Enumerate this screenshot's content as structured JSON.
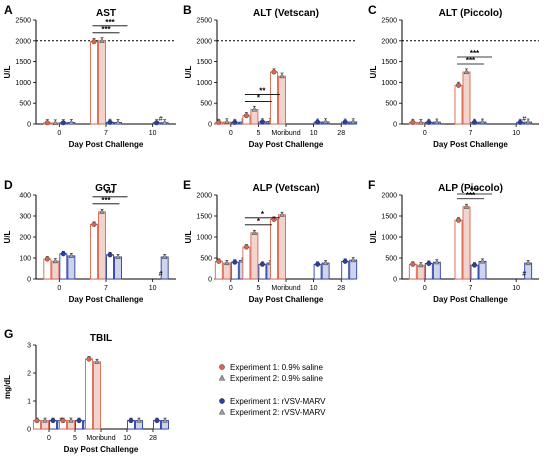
{
  "colors": {
    "saline": "#d9664e",
    "marv": "#2b3ea3",
    "saline_fill": "#f3d4cc",
    "marv_fill": "#cfd4ee",
    "exp2_marker": "#9aa0a6",
    "error": "#333333"
  },
  "legend": [
    {
      "label": "Experiment 1: 0.9% saline",
      "marker": "circle",
      "color": "#d9664e"
    },
    {
      "label": "Experiment 2: 0.9% saline",
      "marker": "triangle",
      "color": "#d9664e"
    },
    {
      "label": "Experiment 1: rVSV-MARV",
      "marker": "circle",
      "color": "#2b3ea3"
    },
    {
      "label": "Experiment 2: rVSV-MARV",
      "marker": "triangle",
      "color": "#2b3ea3"
    }
  ],
  "chart_data": [
    {
      "panel": "A",
      "type": "bar",
      "title": "AST",
      "ylabel": "U/L",
      "xlabel": "Day Post Challenge",
      "ylim": [
        0,
        2500
      ],
      "yticks": [
        0,
        500,
        1000,
        1500,
        2000,
        2500
      ],
      "ref_line": 2000,
      "categories": [
        "0",
        "7",
        "10"
      ],
      "bars": [
        {
          "category": "0",
          "group": "saline",
          "exp": 1,
          "value": 30
        },
        {
          "category": "0",
          "group": "saline",
          "exp": 2,
          "value": 25
        },
        {
          "category": "0",
          "group": "marv",
          "exp": 1,
          "value": 30
        },
        {
          "category": "0",
          "group": "marv",
          "exp": 2,
          "value": 35
        },
        {
          "category": "7",
          "group": "saline",
          "exp": 1,
          "value": 1980
        },
        {
          "category": "7",
          "group": "saline",
          "exp": 2,
          "value": 2000
        },
        {
          "category": "7",
          "group": "marv",
          "exp": 1,
          "value": 40
        },
        {
          "category": "7",
          "group": "marv",
          "exp": 2,
          "value": 35
        },
        {
          "category": "10",
          "group": "marv",
          "exp": 1,
          "value": 30
        },
        {
          "category": "10",
          "group": "marv",
          "exp": 2,
          "value": 30
        }
      ],
      "significance": [
        {
          "label": "***",
          "from": "7",
          "to": "7",
          "level": 1
        },
        {
          "label": "***",
          "from": "7",
          "to": "7",
          "level": 2
        }
      ],
      "marks": [
        {
          "label": "#",
          "category": "10"
        }
      ]
    },
    {
      "panel": "B",
      "type": "bar",
      "title": "ALT (Vetscan)",
      "ylabel": "U/L",
      "xlabel": "Day Post Challenge",
      "ylim": [
        0,
        2500
      ],
      "yticks": [
        0,
        500,
        1000,
        1500,
        2000,
        2500
      ],
      "ref_line": 2000,
      "categories": [
        "0",
        "5",
        "Moribund",
        "10",
        "28"
      ],
      "bars": [
        {
          "category": "0",
          "group": "saline",
          "exp": 1,
          "value": 40
        },
        {
          "category": "0",
          "group": "saline",
          "exp": 2,
          "value": 50
        },
        {
          "category": "0",
          "group": "marv",
          "exp": 1,
          "value": 40
        },
        {
          "category": "0",
          "group": "marv",
          "exp": 2,
          "value": 45
        },
        {
          "category": "5",
          "group": "saline",
          "exp": 1,
          "value": 200
        },
        {
          "category": "5",
          "group": "saline",
          "exp": 2,
          "value": 350
        },
        {
          "category": "5",
          "group": "marv",
          "exp": 1,
          "value": 50
        },
        {
          "category": "5",
          "group": "marv",
          "exp": 2,
          "value": 60
        },
        {
          "category": "Moribund",
          "group": "saline",
          "exp": 1,
          "value": 1250
        },
        {
          "category": "Moribund",
          "group": "saline",
          "exp": 2,
          "value": 1150
        },
        {
          "category": "10",
          "group": "marv",
          "exp": 1,
          "value": 45
        },
        {
          "category": "10",
          "group": "marv",
          "exp": 2,
          "value": 50
        },
        {
          "category": "28",
          "group": "marv",
          "exp": 1,
          "value": 45
        },
        {
          "category": "28",
          "group": "marv",
          "exp": 2,
          "value": 50
        }
      ],
      "significance": [
        {
          "label": "*",
          "from": "5",
          "to": "5",
          "level": 1
        },
        {
          "label": "**",
          "from": "5",
          "to": "5",
          "level": 2
        }
      ],
      "marks": []
    },
    {
      "panel": "C",
      "type": "bar",
      "title": "ALT (Piccolo)",
      "ylabel": "U/L",
      "xlabel": "Day Post Challenge",
      "ylim": [
        0,
        2500
      ],
      "yticks": [
        0,
        500,
        1000,
        1500,
        2000,
        2500
      ],
      "ref_line": 2000,
      "categories": [
        "0",
        "7",
        "10"
      ],
      "bars": [
        {
          "category": "0",
          "group": "saline",
          "exp": 1,
          "value": 40
        },
        {
          "category": "0",
          "group": "saline",
          "exp": 2,
          "value": 35
        },
        {
          "category": "0",
          "group": "marv",
          "exp": 1,
          "value": 40
        },
        {
          "category": "0",
          "group": "marv",
          "exp": 2,
          "value": 45
        },
        {
          "category": "7",
          "group": "saline",
          "exp": 1,
          "value": 930
        },
        {
          "category": "7",
          "group": "saline",
          "exp": 2,
          "value": 1250
        },
        {
          "category": "7",
          "group": "marv",
          "exp": 1,
          "value": 40
        },
        {
          "category": "7",
          "group": "marv",
          "exp": 2,
          "value": 45
        },
        {
          "category": "10",
          "group": "marv",
          "exp": 1,
          "value": 40
        },
        {
          "category": "10",
          "group": "marv",
          "exp": 2,
          "value": 45
        }
      ],
      "significance": [
        {
          "label": "***",
          "from": "7",
          "to": "7",
          "level": 1
        },
        {
          "label": "***",
          "from": "7",
          "to": "7",
          "level": 2
        }
      ],
      "marks": [
        {
          "label": "#",
          "category": "10"
        }
      ]
    },
    {
      "panel": "D",
      "type": "bar",
      "title": "GGT",
      "ylabel": "U/L",
      "xlabel": "Day Post Challenge",
      "ylim": [
        0,
        400
      ],
      "yticks": [
        0,
        100,
        200,
        300,
        400
      ],
      "categories": [
        "0",
        "7",
        "10"
      ],
      "bars": [
        {
          "category": "0",
          "group": "saline",
          "exp": 1,
          "value": 95
        },
        {
          "category": "0",
          "group": "saline",
          "exp": 2,
          "value": 85
        },
        {
          "category": "0",
          "group": "marv",
          "exp": 1,
          "value": 120
        },
        {
          "category": "0",
          "group": "marv",
          "exp": 2,
          "value": 110
        },
        {
          "category": "7",
          "group": "saline",
          "exp": 1,
          "value": 260
        },
        {
          "category": "7",
          "group": "saline",
          "exp": 2,
          "value": 320
        },
        {
          "category": "7",
          "group": "marv",
          "exp": 1,
          "value": 115
        },
        {
          "category": "7",
          "group": "marv",
          "exp": 2,
          "value": 105
        },
        {
          "category": "10",
          "group": "marv",
          "exp": 2,
          "value": 105
        }
      ],
      "significance": [
        {
          "label": "***",
          "from": "7",
          "to": "7",
          "level": 1
        },
        {
          "label": "***",
          "from": "7",
          "to": "7",
          "level": 2
        }
      ],
      "marks": [
        {
          "label": "#",
          "category": "10"
        }
      ]
    },
    {
      "panel": "E",
      "type": "bar",
      "title": "ALP (Vetscan)",
      "ylabel": "U/L",
      "xlabel": "Day Post Challenge",
      "ylim": [
        0,
        2000
      ],
      "yticks": [
        0,
        500,
        1000,
        1500,
        2000
      ],
      "categories": [
        "0",
        "5",
        "Moribund",
        "10",
        "28"
      ],
      "bars": [
        {
          "category": "0",
          "group": "saline",
          "exp": 1,
          "value": 420
        },
        {
          "category": "0",
          "group": "saline",
          "exp": 2,
          "value": 380
        },
        {
          "category": "0",
          "group": "marv",
          "exp": 1,
          "value": 400
        },
        {
          "category": "0",
          "group": "marv",
          "exp": 2,
          "value": 440
        },
        {
          "category": "5",
          "group": "saline",
          "exp": 1,
          "value": 760
        },
        {
          "category": "5",
          "group": "saline",
          "exp": 2,
          "value": 1100
        },
        {
          "category": "5",
          "group": "marv",
          "exp": 1,
          "value": 350
        },
        {
          "category": "5",
          "group": "marv",
          "exp": 2,
          "value": 380
        },
        {
          "category": "Moribund",
          "group": "saline",
          "exp": 1,
          "value": 1420
        },
        {
          "category": "Moribund",
          "group": "saline",
          "exp": 2,
          "value": 1530
        },
        {
          "category": "10",
          "group": "marv",
          "exp": 1,
          "value": 350
        },
        {
          "category": "10",
          "group": "marv",
          "exp": 2,
          "value": 380
        },
        {
          "category": "28",
          "group": "marv",
          "exp": 1,
          "value": 420
        },
        {
          "category": "28",
          "group": "marv",
          "exp": 2,
          "value": 450
        }
      ],
      "significance": [
        {
          "label": "*",
          "from": "5",
          "to": "5",
          "level": 1
        },
        {
          "label": "*",
          "from": "5",
          "to": "5",
          "level": 2
        }
      ],
      "marks": []
    },
    {
      "panel": "F",
      "type": "bar",
      "title": "ALP (Piccolo)",
      "ylabel": "U/L",
      "xlabel": "Day Post Challenge",
      "ylim": [
        0,
        2000
      ],
      "yticks": [
        0,
        500,
        1000,
        1500,
        2000
      ],
      "categories": [
        "0",
        "7",
        "10"
      ],
      "bars": [
        {
          "category": "0",
          "group": "saline",
          "exp": 1,
          "value": 350
        },
        {
          "category": "0",
          "group": "saline",
          "exp": 2,
          "value": 330
        },
        {
          "category": "0",
          "group": "marv",
          "exp": 1,
          "value": 370
        },
        {
          "category": "0",
          "group": "marv",
          "exp": 2,
          "value": 400
        },
        {
          "category": "7",
          "group": "saline",
          "exp": 1,
          "value": 1400
        },
        {
          "category": "7",
          "group": "saline",
          "exp": 2,
          "value": 1720
        },
        {
          "category": "7",
          "group": "marv",
          "exp": 1,
          "value": 330
        },
        {
          "category": "7",
          "group": "marv",
          "exp": 2,
          "value": 420
        },
        {
          "category": "10",
          "group": "marv",
          "exp": 2,
          "value": 380
        }
      ],
      "significance": [
        {
          "label": "***",
          "from": "7",
          "to": "7",
          "level": 1
        },
        {
          "label": "***",
          "from": "7",
          "to": "7",
          "level": 2
        }
      ],
      "marks": [
        {
          "label": "#",
          "category": "10"
        }
      ]
    },
    {
      "panel": "G",
      "type": "bar",
      "title": "TBIL",
      "ylabel": "mg/dL",
      "xlabel": "Day Post Challenge",
      "ylim": [
        0,
        3
      ],
      "yticks": [
        0,
        1,
        2,
        3
      ],
      "categories": [
        "0",
        "5",
        "Moribund",
        "10",
        "28"
      ],
      "bars": [
        {
          "category": "0",
          "group": "saline",
          "exp": 1,
          "value": 0.3
        },
        {
          "category": "0",
          "group": "saline",
          "exp": 2,
          "value": 0.3
        },
        {
          "category": "0",
          "group": "marv",
          "exp": 1,
          "value": 0.3
        },
        {
          "category": "0",
          "group": "marv",
          "exp": 2,
          "value": 0.3
        },
        {
          "category": "5",
          "group": "saline",
          "exp": 1,
          "value": 0.3
        },
        {
          "category": "5",
          "group": "saline",
          "exp": 2,
          "value": 0.3
        },
        {
          "category": "5",
          "group": "marv",
          "exp": 1,
          "value": 0.3
        },
        {
          "category": "5",
          "group": "marv",
          "exp": 2,
          "value": 0.3
        },
        {
          "category": "Moribund",
          "group": "saline",
          "exp": 1,
          "value": 2.5
        },
        {
          "category": "Moribund",
          "group": "saline",
          "exp": 2,
          "value": 2.4
        },
        {
          "category": "10",
          "group": "marv",
          "exp": 1,
          "value": 0.3
        },
        {
          "category": "10",
          "group": "marv",
          "exp": 2,
          "value": 0.3
        },
        {
          "category": "28",
          "group": "marv",
          "exp": 1,
          "value": 0.3
        },
        {
          "category": "28",
          "group": "marv",
          "exp": 2,
          "value": 0.3
        }
      ],
      "significance": [],
      "marks": []
    }
  ]
}
